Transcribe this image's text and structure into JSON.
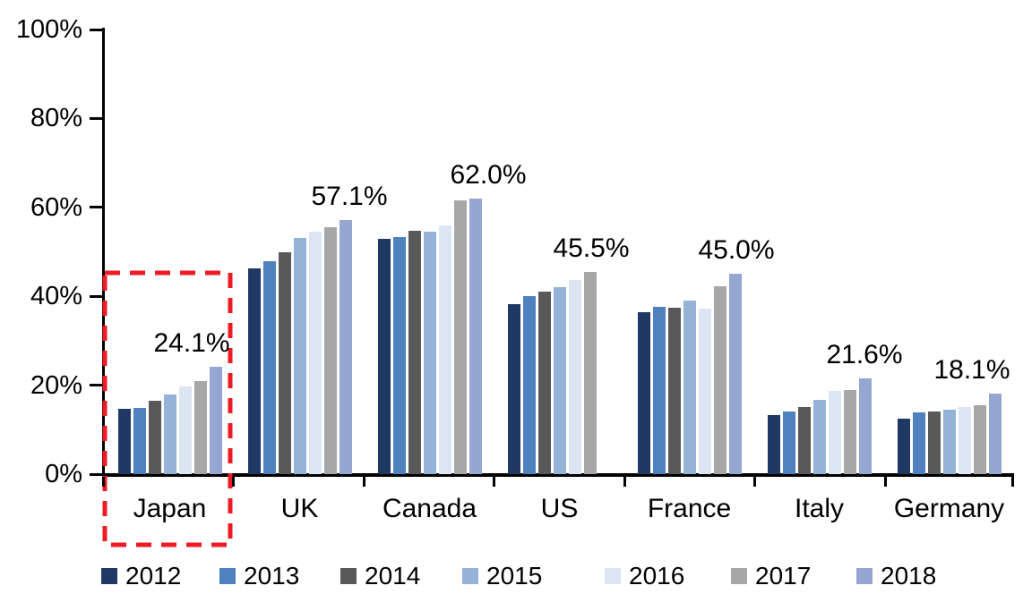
{
  "chart_data": {
    "type": "bar",
    "title": "",
    "xlabel": "",
    "ylabel": "",
    "ylim": [
      0,
      100
    ],
    "grid": false,
    "legend_position": "bottom",
    "yticks": [
      "0%",
      "20%",
      "40%",
      "60%",
      "80%",
      "100%"
    ],
    "categories": [
      "Japan",
      "UK",
      "Canada",
      "US",
      "France",
      "Italy",
      "Germany"
    ],
    "series": [
      {
        "name": "2012",
        "color": "#1F3864",
        "values": [
          14.6,
          46.3,
          52.9,
          38.2,
          36.5,
          13.3,
          12.5
        ]
      },
      {
        "name": "2013",
        "color": "#4E81BD",
        "values": [
          14.8,
          47.8,
          53.3,
          40.1,
          37.6,
          14.0,
          13.8
        ]
      },
      {
        "name": "2014",
        "color": "#595959",
        "values": [
          16.5,
          49.9,
          54.7,
          41.0,
          37.5,
          15.0,
          14.1
        ]
      },
      {
        "name": "2015",
        "color": "#95B3D7",
        "values": [
          18.0,
          53.1,
          54.5,
          42.0,
          39.1,
          16.7,
          14.5
        ]
      },
      {
        "name": "2016",
        "color": "#DCE6F2",
        "values": [
          19.7,
          54.5,
          56.0,
          43.6,
          37.3,
          18.8,
          15.1
        ]
      },
      {
        "name": "2017",
        "color": "#A7A7A7",
        "values": [
          20.9,
          55.6,
          61.5,
          45.5,
          42.2,
          19.0,
          15.5
        ]
      },
      {
        "name": "2018",
        "color": "#95A6D1",
        "values": [
          24.1,
          57.1,
          62.0,
          null,
          45.0,
          21.6,
          18.1
        ]
      }
    ],
    "annotations": [
      {
        "category": "Japan",
        "text": "24.1%"
      },
      {
        "category": "UK",
        "text": "57.1%"
      },
      {
        "category": "Canada",
        "text": "62.0%"
      },
      {
        "category": "US",
        "text": "45.5%"
      },
      {
        "category": "France",
        "text": "45.0%"
      },
      {
        "category": "Italy",
        "text": "21.6%"
      },
      {
        "category": "Germany",
        "text": "18.1%"
      }
    ],
    "highlight": {
      "type": "dashed-box",
      "color": "#ED1C24",
      "category": "Japan"
    },
    "axis_color": "#000000",
    "text_color": "#000000"
  }
}
